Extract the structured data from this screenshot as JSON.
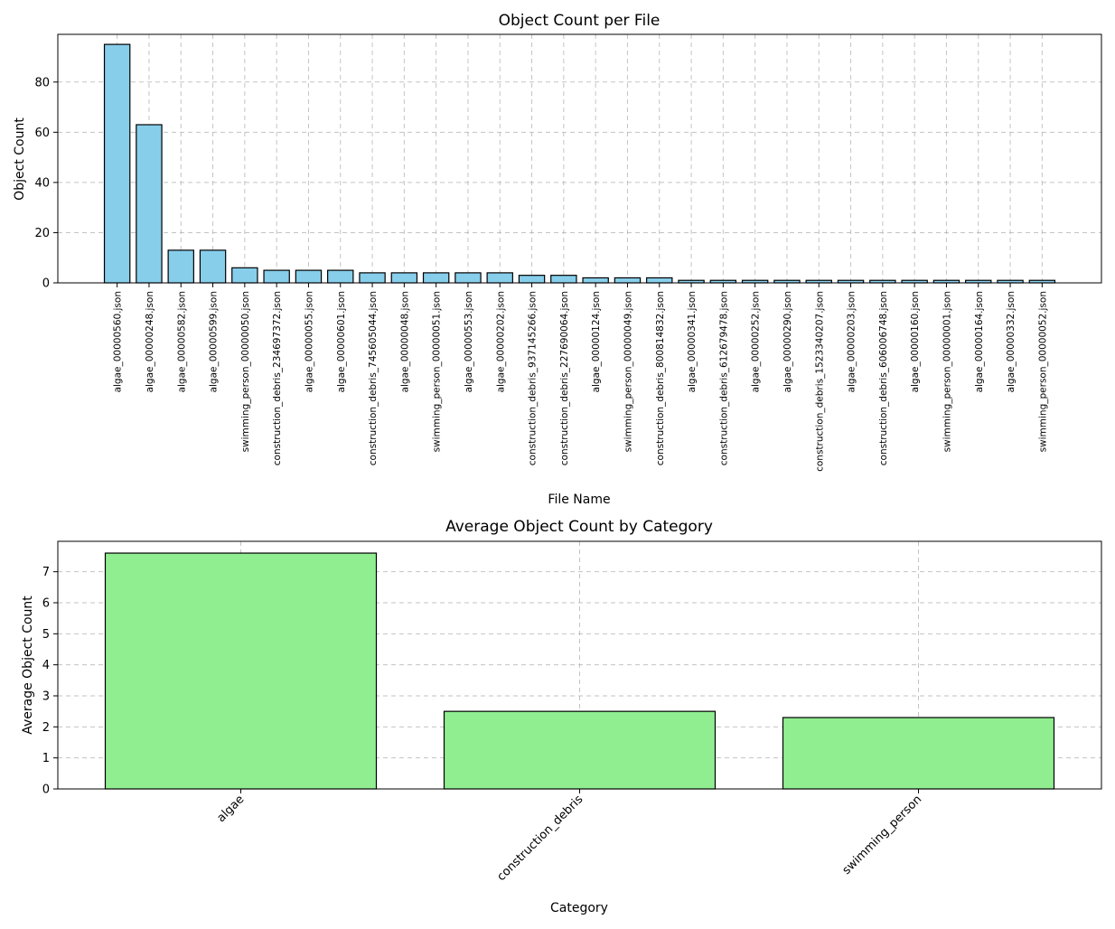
{
  "chart_data": [
    {
      "type": "bar",
      "title": "Object Count per File",
      "xlabel": "File Name",
      "ylabel": "Object Count",
      "ylim": [
        0,
        99
      ],
      "yticks": [
        0,
        20,
        40,
        60,
        80
      ],
      "grid": true,
      "bar_color": "#87ceeb",
      "categories": [
        "algae_00000560.json",
        "algae_00000248.json",
        "algae_00000582.json",
        "algae_00000599.json",
        "swimming_person_00000050.json",
        "construction_debris_234697372.json",
        "algae_00000055.json",
        "algae_00000601.json",
        "construction_debris_745605044.json",
        "algae_00000048.json",
        "swimming_person_00000051.json",
        "algae_00000553.json",
        "algae_00000202.json",
        "construction_debris_937145266.json",
        "construction_debris_227690064.json",
        "algae_00000124.json",
        "swimming_person_00000049.json",
        "construction_debris_800814832.json",
        "algae_00000341.json",
        "construction_debris_612679478.json",
        "algae_00000252.json",
        "algae_00000290.json",
        "construction_debris_1523340207.json",
        "algae_00000203.json",
        "construction_debris_606006748.json",
        "algae_00000160.json",
        "swimming_person_00000001.json",
        "algae_00000164.json",
        "algae_00000332.json",
        "swimming_person_00000052.json"
      ],
      "values": [
        95,
        63,
        13,
        13,
        6,
        5,
        5,
        5,
        4,
        4,
        4,
        4,
        4,
        3,
        3,
        2,
        2,
        2,
        1,
        1,
        1,
        1,
        1,
        1,
        1,
        1,
        1,
        1,
        1,
        1
      ]
    },
    {
      "type": "bar",
      "title": "Average Object Count by Category",
      "xlabel": "Category",
      "ylabel": "Average Object Count",
      "ylim": [
        0,
        7.98
      ],
      "yticks": [
        0,
        1,
        2,
        3,
        4,
        5,
        6,
        7
      ],
      "grid": true,
      "bar_color": "#90ee90",
      "categories": [
        "algae",
        "construction_debris",
        "swimming_person"
      ],
      "values": [
        7.6,
        2.5,
        2.3
      ]
    }
  ]
}
